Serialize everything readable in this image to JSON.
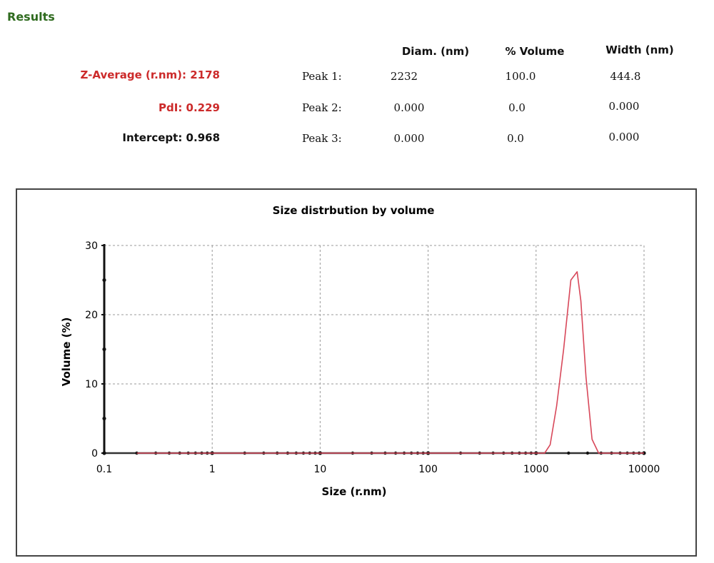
{
  "results_heading": "Results",
  "summary": {
    "z_average": "Z-Average (r.nm): 2178",
    "pdi": "PdI: 0.229",
    "intercept": "Intercept: 0.968"
  },
  "peaks_table": {
    "headers": [
      "Diam. (nm)",
      "% Volume",
      "Width (nm)"
    ],
    "rows": [
      {
        "label": "Peak 1:",
        "diam": "2232",
        "volume": "100.0",
        "width": "444.8"
      },
      {
        "label": "Peak 2:",
        "diam": "0.000",
        "volume": "0.0",
        "width": "0.000"
      },
      {
        "label": "Peak 3:",
        "diam": "0.000",
        "volume": "0.0",
        "width": "0.000"
      }
    ]
  },
  "colors": {
    "summary_red": "#cc2a2a",
    "heading_green": "#2f6b1f",
    "series_line": "#d8485a",
    "grid": "#999999"
  },
  "chart_data": {
    "type": "line",
    "title": "Size distrbution by volume",
    "xlabel": "Size (r.nm)",
    "ylabel": "Volume (%)",
    "xscale": "log",
    "xlim": [
      0.1,
      10000
    ],
    "ylim": [
      0,
      30
    ],
    "xticks": [
      {
        "value": 0.1,
        "label": "0.1"
      },
      {
        "value": 1,
        "label": "1"
      },
      {
        "value": 10,
        "label": "10"
      },
      {
        "value": 100,
        "label": "100"
      },
      {
        "value": 1000,
        "label": "1000"
      },
      {
        "value": 10000,
        "label": "10000"
      }
    ],
    "yticks": [
      {
        "value": 0,
        "label": "0"
      },
      {
        "value": 10,
        "label": "10"
      },
      {
        "value": 20,
        "label": "20"
      },
      {
        "value": 30,
        "label": "30"
      }
    ],
    "grid": true,
    "series": [
      {
        "color": "#d8485a",
        "x": [
          0.2,
          0.5,
          1,
          10,
          100,
          1000,
          1200,
          1350,
          1550,
          1800,
          2100,
          2400,
          2600,
          2900,
          3300,
          3800,
          4200,
          5000,
          10000
        ],
        "y": [
          0,
          0,
          0,
          0,
          0,
          0,
          0,
          1.2,
          6.8,
          15,
          25,
          26.2,
          22,
          11,
          2,
          0,
          0,
          0,
          0
        ]
      }
    ]
  }
}
